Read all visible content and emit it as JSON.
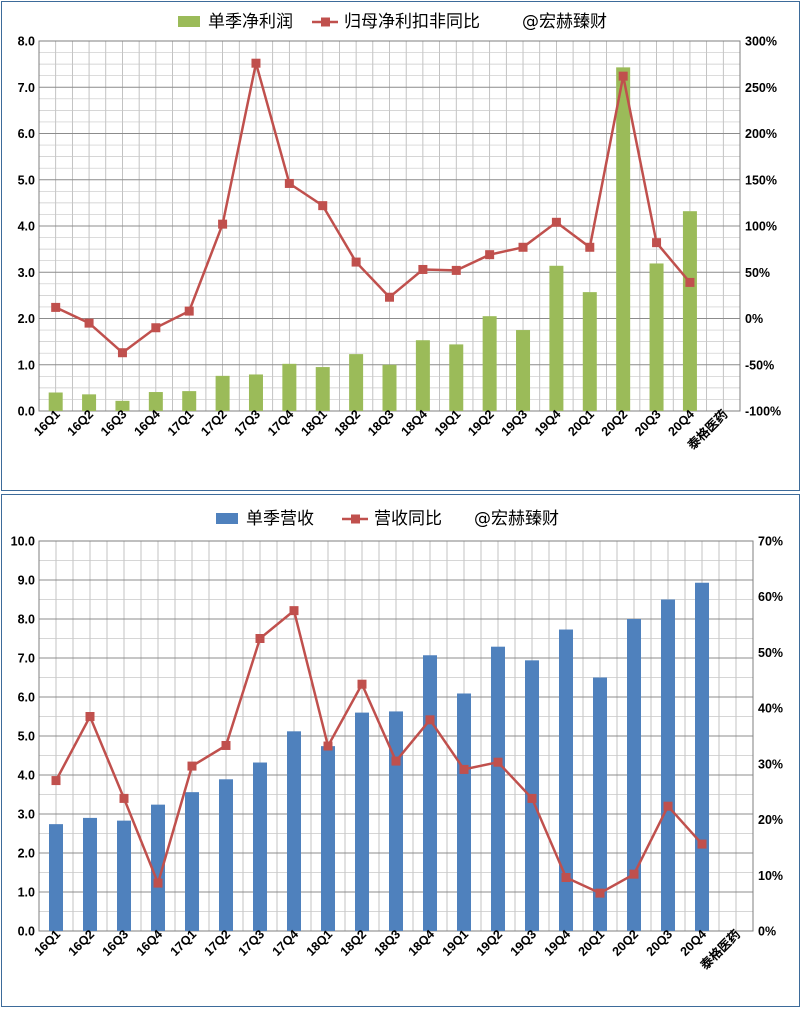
{
  "chart_data": [
    {
      "type": "bar",
      "categories": [
        "16Q1",
        "16Q2",
        "16Q3",
        "16Q4",
        "17Q1",
        "17Q2",
        "17Q3",
        "17Q4",
        "18Q1",
        "18Q2",
        "18Q3",
        "18Q4",
        "19Q1",
        "19Q2",
        "19Q3",
        "19Q4",
        "20Q1",
        "20Q2",
        "20Q3",
        "20Q4"
      ],
      "extra_category_label": "泰格医药",
      "series": [
        {
          "name": "单季净利润",
          "kind": "bar",
          "axis": "left",
          "color": "#9bbb59",
          "values": [
            0.4,
            0.36,
            0.22,
            0.41,
            0.43,
            0.76,
            0.79,
            1.02,
            0.95,
            1.23,
            1.0,
            1.53,
            1.44,
            2.05,
            1.75,
            3.14,
            2.57,
            7.43,
            3.19,
            4.32
          ]
        },
        {
          "name": "归母净利扣非同比",
          "kind": "line",
          "axis": "right",
          "color": "#c0504d",
          "values": [
            12,
            -5,
            -37,
            -10,
            8,
            102,
            276,
            146,
            122,
            61,
            23,
            53,
            52,
            69,
            77,
            104,
            77,
            262,
            82,
            39
          ]
        }
      ],
      "watermark": "@宏赫臻财",
      "ylim_left": [
        0,
        8
      ],
      "ylim_right": [
        -100,
        300
      ],
      "left_ticks": [
        "0.0",
        "1.0",
        "2.0",
        "3.0",
        "4.0",
        "5.0",
        "6.0",
        "7.0",
        "8.0"
      ],
      "right_ticks": [
        "-100%",
        "-50%",
        "0%",
        "50%",
        "100%",
        "150%",
        "200%",
        "250%",
        "300%"
      ],
      "grid": true,
      "legend_position": "top"
    },
    {
      "type": "bar",
      "categories": [
        "16Q1",
        "16Q2",
        "16Q3",
        "16Q4",
        "17Q1",
        "17Q2",
        "17Q3",
        "17Q4",
        "18Q1",
        "18Q2",
        "18Q3",
        "18Q4",
        "19Q1",
        "19Q2",
        "19Q3",
        "19Q4",
        "20Q1",
        "20Q2",
        "20Q3",
        "20Q4"
      ],
      "extra_category_label": "泰格医药",
      "series": [
        {
          "name": "单季营收",
          "kind": "bar",
          "axis": "left",
          "color": "#4f81bd",
          "values": [
            2.74,
            2.9,
            2.83,
            3.24,
            3.56,
            3.89,
            4.32,
            5.12,
            4.74,
            5.6,
            5.63,
            7.07,
            6.09,
            7.29,
            6.94,
            7.73,
            6.5,
            8.0,
            8.5,
            8.93
          ]
        },
        {
          "name": "营收同比",
          "kind": "line",
          "axis": "right",
          "color": "#c0504d",
          "values": [
            27,
            38.5,
            23.8,
            8.6,
            29.6,
            33.3,
            52.5,
            57.5,
            33.2,
            44.3,
            30.5,
            37.9,
            29.0,
            30.3,
            23.8,
            9.6,
            6.8,
            10.2,
            22.4,
            15.6
          ]
        }
      ],
      "watermark": "@宏赫臻财",
      "ylim_left": [
        0,
        10
      ],
      "ylim_right": [
        0,
        70
      ],
      "left_ticks": [
        "0.0",
        "1.0",
        "2.0",
        "3.0",
        "4.0",
        "5.0",
        "6.0",
        "7.0",
        "8.0",
        "9.0",
        "10.0"
      ],
      "right_ticks": [
        "0%",
        "10%",
        "20%",
        "30%",
        "40%",
        "50%",
        "60%",
        "70%"
      ],
      "grid": true,
      "legend_position": "top"
    }
  ]
}
